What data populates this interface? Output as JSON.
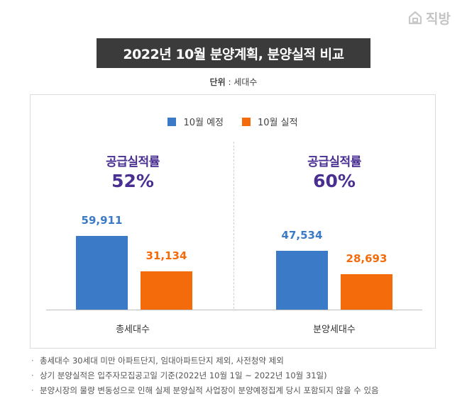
{
  "logo": {
    "brand": "직방"
  },
  "title": "2022년 10월 분양계획, 분양실적 비교",
  "unit": {
    "label": "단위",
    "value": " : 세대수"
  },
  "colors": {
    "planned": "#3a7ac6",
    "actual": "#f46b0c",
    "rate_text": "#4a2f92"
  },
  "chart_data": {
    "type": "bar",
    "categories": [
      "총세대수",
      "분양세대수"
    ],
    "series": [
      {
        "name": "10월 예정",
        "values": [
          59911,
          47534
        ],
        "labels": [
          "59,911",
          "47,534"
        ]
      },
      {
        "name": "10월 실적",
        "values": [
          31134,
          28693
        ],
        "labels": [
          "31,134",
          "28,693"
        ]
      }
    ],
    "rates": [
      {
        "label": "공급실적률",
        "value": "52%"
      },
      {
        "label": "공급실적률",
        "value": "60%"
      }
    ],
    "ylim": [
      0,
      80000
    ],
    "legend_position": "top-center",
    "grid": false
  },
  "notes": [
    "총세대수 30세대 미만 아파트단지, 임대아파트단지 제외, 사전청약 제외",
    "상기 분양실적은 입주자모집공고일 기준(2022년 10월 1일 ~ 2022년 10월 31일)",
    "분양시장의 물량 변동성으로 인해 실제 분양실적 사업장이 분양예정집계 당시 포함되지 않을 수 있음"
  ]
}
